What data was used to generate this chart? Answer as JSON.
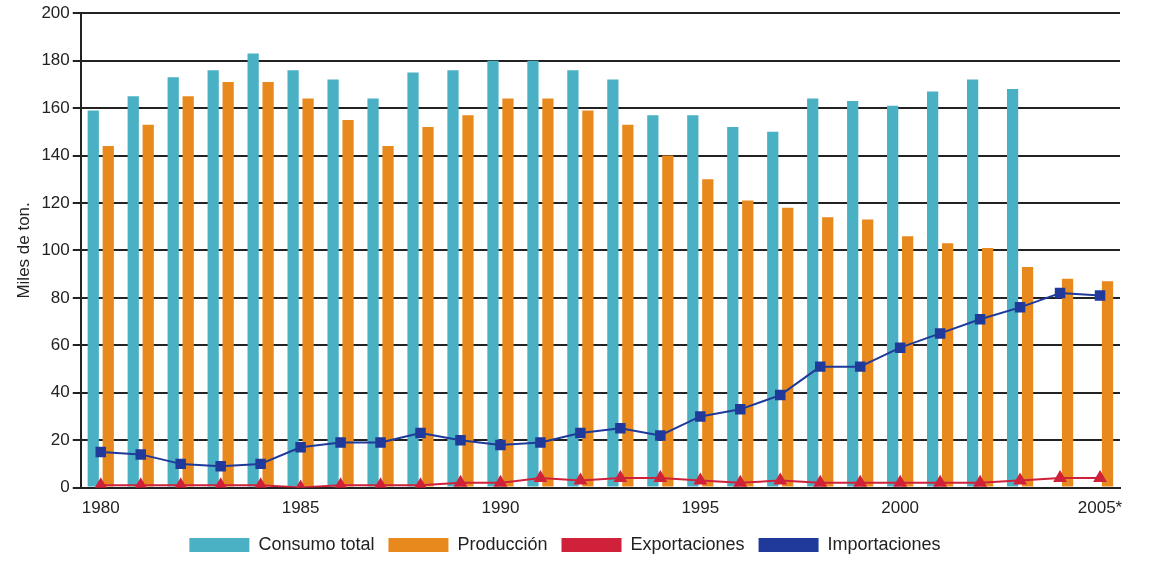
{
  "chart_data": {
    "type": "bar",
    "ylabel": "Miles de ton.",
    "categories": [
      "1980",
      null,
      null,
      null,
      null,
      "1985",
      null,
      null,
      null,
      null,
      "1990",
      null,
      null,
      null,
      null,
      "1995",
      null,
      null,
      null,
      null,
      "2000",
      null,
      null,
      null,
      null,
      "2005*"
    ],
    "series": [
      {
        "name": "Consumo total",
        "color": "#4ab0c4",
        "values": [
          159,
          165,
          173,
          176,
          183,
          176,
          172,
          164,
          175,
          176,
          180,
          180,
          176,
          172,
          157,
          157,
          152,
          150,
          164,
          163,
          161,
          167,
          172,
          168,
          null,
          null
        ]
      },
      {
        "name": "Producción",
        "color": "#e8891e",
        "values": [
          144,
          153,
          165,
          171,
          171,
          164,
          155,
          144,
          152,
          157,
          164,
          164,
          159,
          153,
          140,
          130,
          121,
          118,
          114,
          113,
          106,
          103,
          101,
          93,
          88,
          87
        ]
      },
      {
        "name": "Exportaciones",
        "type": "line",
        "color": "#d0213a",
        "marker": "triangle",
        "values": [
          1,
          1,
          1,
          1,
          1,
          0,
          1,
          1,
          1,
          2,
          2,
          4,
          3,
          4,
          4,
          3,
          2,
          3,
          2,
          2,
          2,
          2,
          2,
          3,
          4,
          4
        ]
      },
      {
        "name": "Importaciones",
        "type": "line",
        "color": "#1f3a9a",
        "marker": "square",
        "values": [
          15,
          14,
          10,
          9,
          10,
          17,
          19,
          19,
          23,
          20,
          18,
          19,
          23,
          25,
          22,
          30,
          33,
          39,
          51,
          51,
          59,
          65,
          71,
          76,
          82,
          81
        ]
      }
    ],
    "ylim": [
      0,
      200
    ],
    "yticks": [
      0,
      20,
      40,
      60,
      80,
      100,
      120,
      140,
      160,
      180,
      200
    ],
    "grid": "y",
    "legend": "bottom"
  }
}
